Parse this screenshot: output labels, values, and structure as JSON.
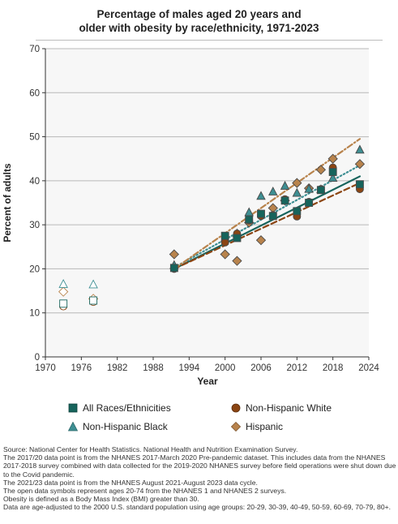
{
  "title_lines": [
    "Percentage of males aged 20 years and",
    "older with obesity by race/ethnicity, 1971-2023"
  ],
  "chart_data": {
    "type": "scatter",
    "xlabel": "Year",
    "ylabel": "Percent of adults",
    "xlim": [
      1970,
      2024
    ],
    "ylim": [
      0,
      70
    ],
    "xticks": [
      1970,
      1976,
      1982,
      1988,
      1994,
      2000,
      2006,
      2012,
      2018,
      2024
    ],
    "yticks": [
      0,
      10,
      20,
      30,
      40,
      50,
      60,
      70
    ],
    "grid": "horizontal",
    "legend_position": "bottom",
    "series": [
      {
        "name": "All Races/Ethnicities",
        "color": "#17645c",
        "marker": "square",
        "trend": "solid",
        "open_points": [
          {
            "x": 1973,
            "y": 12.1
          },
          {
            "x": 1978,
            "y": 12.8
          }
        ],
        "points": [
          {
            "x": 1991.5,
            "y": 20.2
          },
          {
            "x": 2000,
            "y": 27.5
          },
          {
            "x": 2002,
            "y": 27.0
          },
          {
            "x": 2004,
            "y": 31.2
          },
          {
            "x": 2006,
            "y": 32.5
          },
          {
            "x": 2008,
            "y": 32.0
          },
          {
            "x": 2010,
            "y": 35.5
          },
          {
            "x": 2012,
            "y": 33.1
          },
          {
            "x": 2014,
            "y": 35.0
          },
          {
            "x": 2016,
            "y": 37.9
          },
          {
            "x": 2018,
            "y": 42.0
          },
          {
            "x": 2022.5,
            "y": 39.2
          }
        ],
        "trend_line": [
          {
            "x": 1991.5,
            "y": 20.0
          },
          {
            "x": 2022.5,
            "y": 41.0
          }
        ]
      },
      {
        "name": "Non-Hispanic White",
        "color": "#8b4513",
        "marker": "circle",
        "trend": "dashed",
        "open_points": [
          {
            "x": 1973,
            "y": 11.5
          },
          {
            "x": 1978,
            "y": 12.5
          }
        ],
        "points": [
          {
            "x": 1991.5,
            "y": 20.0
          },
          {
            "x": 2000,
            "y": 26.0
          },
          {
            "x": 2002,
            "y": 28.0
          },
          {
            "x": 2004,
            "y": 31.0
          },
          {
            "x": 2006,
            "y": 32.0
          },
          {
            "x": 2008,
            "y": 32.2
          },
          {
            "x": 2010,
            "y": 35.8
          },
          {
            "x": 2012,
            "y": 31.9
          },
          {
            "x": 2014,
            "y": 35.2
          },
          {
            "x": 2016,
            "y": 38.1
          },
          {
            "x": 2018,
            "y": 43.0
          },
          {
            "x": 2022.5,
            "y": 38.1
          }
        ],
        "trend_line": [
          {
            "x": 1991.5,
            "y": 20.0
          },
          {
            "x": 2022.5,
            "y": 39.5
          }
        ]
      },
      {
        "name": "Non-Hispanic Black",
        "color": "#3e8f93",
        "marker": "triangle",
        "trend": "dotted",
        "open_points": [
          {
            "x": 1973,
            "y": 16.5
          },
          {
            "x": 1978,
            "y": 16.4
          }
        ],
        "points": [
          {
            "x": 1991.5,
            "y": 20.8
          },
          {
            "x": 2000,
            "y": 27.0
          },
          {
            "x": 2002,
            "y": 28.0
          },
          {
            "x": 2004,
            "y": 32.8
          },
          {
            "x": 2006,
            "y": 36.5
          },
          {
            "x": 2008,
            "y": 37.5
          },
          {
            "x": 2010,
            "y": 38.8
          },
          {
            "x": 2012,
            "y": 37.2
          },
          {
            "x": 2014,
            "y": 38.1
          },
          {
            "x": 2016,
            "y": 38.0
          },
          {
            "x": 2018,
            "y": 40.6
          },
          {
            "x": 2022.5,
            "y": 47.0
          }
        ],
        "trend_line": [
          {
            "x": 1991.5,
            "y": 20.3
          },
          {
            "x": 2022.5,
            "y": 43.5
          }
        ]
      },
      {
        "name": "Hispanic",
        "color": "#b8834c",
        "marker": "diamond",
        "trend": "dashdot",
        "open_points": [
          {
            "x": 1973,
            "y": 14.8
          },
          {
            "x": 1978,
            "y": 13.2
          }
        ],
        "points": [
          {
            "x": 1991.5,
            "y": 23.3
          },
          {
            "x": 2000,
            "y": 23.3
          },
          {
            "x": 2002,
            "y": 21.8
          },
          {
            "x": 2004,
            "y": 30.5
          },
          {
            "x": 2006,
            "y": 26.5
          },
          {
            "x": 2008,
            "y": 33.8
          },
          {
            "x": 2010,
            "y": 35.5
          },
          {
            "x": 2012,
            "y": 39.5
          },
          {
            "x": 2014,
            "y": 38.3
          },
          {
            "x": 2016,
            "y": 42.5
          },
          {
            "x": 2018,
            "y": 45.0
          },
          {
            "x": 2022.5,
            "y": 43.8
          }
        ],
        "trend_line": [
          {
            "x": 1991.5,
            "y": 20.0
          },
          {
            "x": 2022.5,
            "y": 49.5
          }
        ]
      }
    ]
  },
  "legend": [
    {
      "label": "All Races/Ethnicities",
      "marker": "square",
      "color": "#17645c"
    },
    {
      "label": "Non-Hispanic White",
      "marker": "circle",
      "color": "#8b4513"
    },
    {
      "label": "Non-Hispanic Black",
      "marker": "triangle",
      "color": "#3e8f93"
    },
    {
      "label": "Hispanic",
      "marker": "diamond",
      "color": "#b8834c"
    }
  ],
  "notes": [
    "Source: National Center for Health Statistics. National Health and Nutrition Examination Survey.",
    "The 2017/20 data point is from the NHANES 2017-March 2020 Pre-pandemic dataset. This includes data from the NHANES 2017-2018 survey combined with data collected for the 2019-2020 NHANES survey before field operations were shut down due to the Covid pandemic.",
    "The 2021/23 data point is from the NHANES August 2021-August 2023 data cycle.",
    "The open data symbols represent ages 20-74 from the NHANES 1 and NHANES 2 surveys.",
    "Obesity is defined as a Body Mass Index (BMI) greater than 30.",
    "Data are age-adjusted to the 2000 U.S. standard population using age groups: 20-29, 30-39, 40-49, 50-59, 60-69, 70-79, 80+."
  ]
}
